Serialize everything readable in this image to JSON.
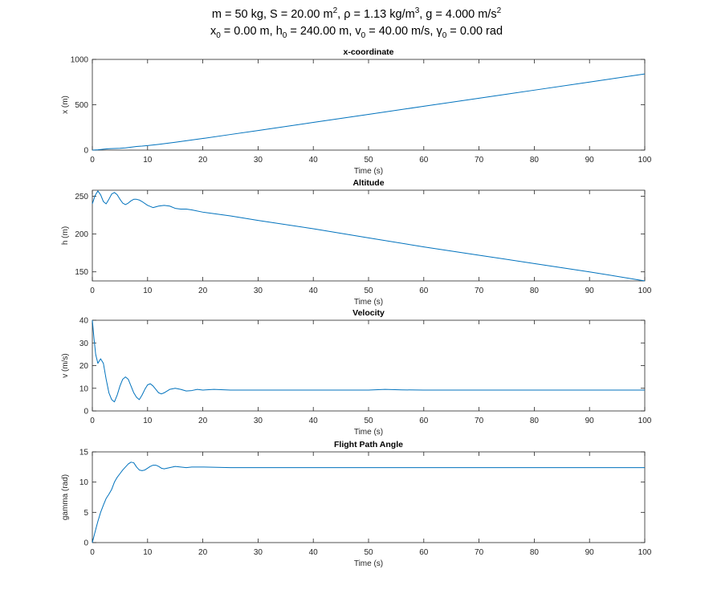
{
  "figure": {
    "params": {
      "m": "50 kg",
      "S": "20.00 m",
      "rho_symbol": "ρ",
      "rho": "1.13 kg/m",
      "g": "4.000 m/s",
      "x0": "0.00 m",
      "h0": "240.00 m",
      "v0": "40.00 m/s",
      "gamma_symbol": "γ",
      "gamma0": "0.00 rad"
    }
  },
  "colors": {
    "line": "#0072bd",
    "axis": "#262626"
  },
  "chart_data": [
    {
      "type": "line",
      "title": "x-coordinate",
      "xlabel": "Time (s)",
      "ylabel": "x (m)",
      "xlim": [
        0,
        100
      ],
      "ylim": [
        0,
        1000
      ],
      "xticks": [
        0,
        10,
        20,
        30,
        40,
        50,
        60,
        70,
        80,
        90,
        100
      ],
      "yticks": [
        0,
        500,
        1000
      ],
      "series": [
        {
          "x": [
            0,
            1,
            2,
            3,
            4,
            5,
            6,
            7,
            8,
            9,
            10,
            12,
            15,
            20,
            25,
            30,
            40,
            50,
            60,
            70,
            80,
            90,
            100
          ],
          "values": [
            0,
            3,
            10,
            16,
            18,
            20,
            24,
            32,
            40,
            44,
            50,
            63,
            86,
            128,
            172,
            216,
            305,
            394,
            483,
            572,
            661,
            750,
            840
          ]
        }
      ]
    },
    {
      "type": "line",
      "title": "Altitude",
      "xlabel": "Time (s)",
      "ylabel": "h (m)",
      "xlim": [
        0,
        100
      ],
      "ylim": [
        138,
        258
      ],
      "xticks": [
        0,
        10,
        20,
        30,
        40,
        50,
        60,
        70,
        80,
        90,
        100
      ],
      "yticks": [
        150,
        200,
        250
      ],
      "series": [
        {
          "x": [
            0,
            0.5,
            1,
            1.5,
            2,
            2.5,
            3,
            3.5,
            4,
            4.5,
            5,
            5.5,
            6,
            6.5,
            7,
            7.5,
            8,
            8.5,
            9,
            10,
            11,
            12,
            13,
            14,
            15,
            16,
            17,
            18,
            20,
            25,
            30,
            40,
            50,
            60,
            70,
            80,
            90,
            100
          ],
          "values": [
            240,
            251,
            257,
            252,
            243,
            240,
            246,
            253,
            255,
            252,
            246,
            241,
            239,
            241,
            244,
            246,
            246,
            245,
            243,
            238,
            235,
            237,
            238,
            237,
            234,
            233,
            233,
            232,
            229,
            224,
            218,
            207,
            195,
            183,
            172,
            161,
            150,
            138
          ]
        }
      ]
    },
    {
      "type": "line",
      "title": "Velocity",
      "xlabel": "Time (s)",
      "ylabel": "v (m/s)",
      "xlim": [
        0,
        100
      ],
      "ylim": [
        0,
        40
      ],
      "xticks": [
        0,
        10,
        20,
        30,
        40,
        50,
        60,
        70,
        80,
        90,
        100
      ],
      "yticks": [
        0,
        10,
        20,
        30,
        40
      ],
      "series": [
        {
          "x": [
            0,
            0.3,
            0.6,
            1,
            1.5,
            2,
            2.5,
            3,
            3.5,
            4,
            4.5,
            5,
            5.5,
            6,
            6.5,
            7,
            7.5,
            8,
            8.5,
            9,
            9.5,
            10,
            10.5,
            11,
            11.5,
            12,
            12.5,
            13,
            14,
            15,
            16,
            17,
            18,
            19,
            20,
            22,
            25,
            30,
            50,
            53,
            56,
            60,
            70,
            80,
            90,
            100
          ],
          "values": [
            40,
            32,
            25,
            21,
            23,
            21,
            14,
            8,
            5,
            4,
            7,
            11,
            14,
            15,
            14,
            11,
            8,
            6,
            5,
            7,
            9.5,
            11.5,
            12,
            11,
            9.5,
            8,
            7.5,
            8,
            9.5,
            10,
            9.5,
            8.8,
            9,
            9.5,
            9.2,
            9.5,
            9.2,
            9.2,
            9.2,
            9.5,
            9.3,
            9.2,
            9.2,
            9.2,
            9.2,
            9.2
          ]
        }
      ]
    },
    {
      "type": "line",
      "title": "Flight Path Angle",
      "xlabel": "Time (s)",
      "ylabel": "gamma (rad)",
      "xlim": [
        0,
        100
      ],
      "ylim": [
        0,
        15
      ],
      "xticks": [
        0,
        10,
        20,
        30,
        40,
        50,
        60,
        70,
        80,
        90,
        100
      ],
      "yticks": [
        0,
        5,
        10,
        15
      ],
      "series": [
        {
          "x": [
            0,
            0.5,
            1,
            1.5,
            2,
            2.5,
            3,
            3.5,
            4,
            4.5,
            5,
            5.5,
            6,
            6.5,
            7,
            7.5,
            8,
            8.5,
            9,
            9.5,
            10,
            10.5,
            11,
            11.5,
            12,
            12.5,
            13,
            14,
            15,
            16,
            17,
            18,
            20,
            25,
            30,
            40,
            50,
            60,
            70,
            80,
            90,
            100
          ],
          "values": [
            0,
            1.8,
            3.5,
            5,
            6.2,
            7.3,
            8,
            8.8,
            10,
            10.8,
            11.4,
            12,
            12.5,
            13,
            13.3,
            13.2,
            12.5,
            12,
            11.9,
            12,
            12.3,
            12.6,
            12.8,
            12.8,
            12.6,
            12.3,
            12.2,
            12.4,
            12.6,
            12.5,
            12.4,
            12.5,
            12.5,
            12.4,
            12.4,
            12.4,
            12.4,
            12.4,
            12.4,
            12.4,
            12.4,
            12.4
          ]
        }
      ]
    }
  ]
}
